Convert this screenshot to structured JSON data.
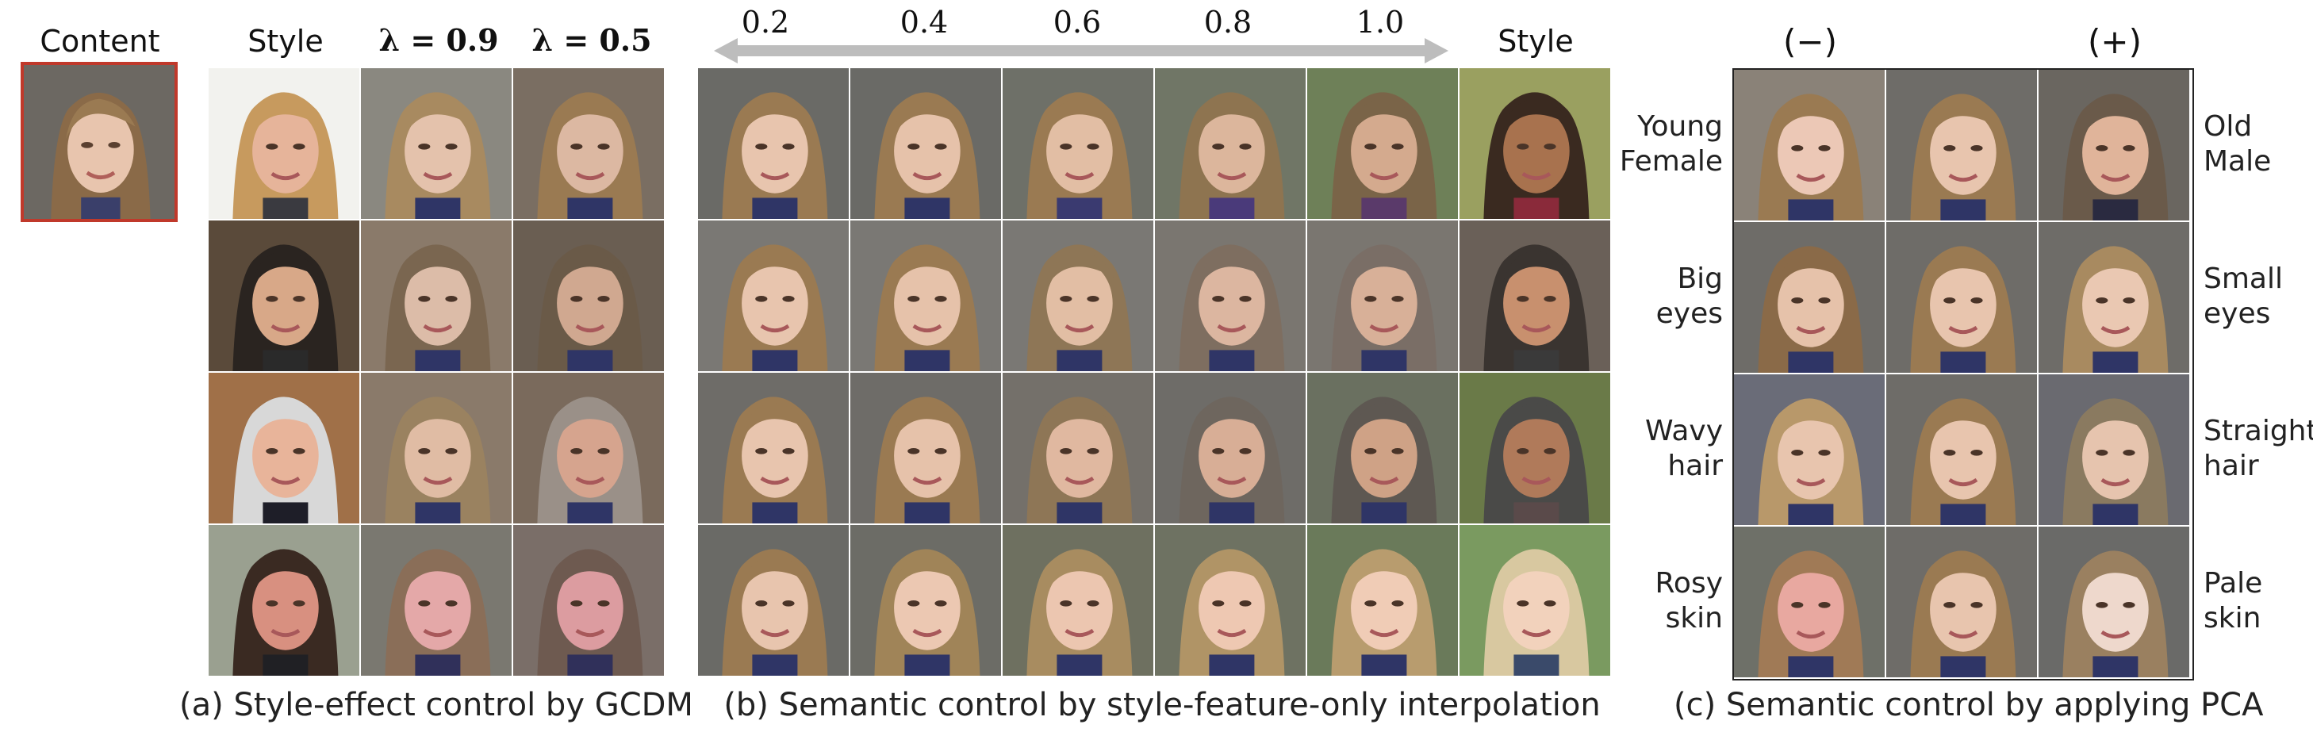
{
  "labels": {
    "content": "Content",
    "style_a": "Style",
    "lambda_09": "λ = 0.9",
    "lambda_05": "λ = 0.5",
    "style_b": "Style",
    "minus": "(−)",
    "plus": "(+)"
  },
  "interp_ticks": [
    "0.2",
    "0.4",
    "0.6",
    "0.8",
    "1.0"
  ],
  "pca_rows": [
    {
      "left": [
        "Young",
        "Female"
      ],
      "right": [
        "Old",
        "Male"
      ]
    },
    {
      "left": [
        "Big",
        "eyes"
      ],
      "right": [
        "Small",
        "eyes"
      ]
    },
    {
      "left": [
        "Wavy",
        "hair"
      ],
      "right": [
        "Straight",
        "hair"
      ]
    },
    {
      "left": [
        "Rosy",
        "skin"
      ],
      "right": [
        "Pale",
        "skin"
      ]
    }
  ],
  "captions": {
    "a": "(a) Style-effect control by GCDM",
    "b": "(b) Semantic control by style-feature-only interpolation",
    "c": "(c) Semantic control  by applying PCA"
  },
  "colors": {
    "content_border": "#c0392b",
    "arrow": "#bdbdbd",
    "grid_border": "#222222"
  }
}
